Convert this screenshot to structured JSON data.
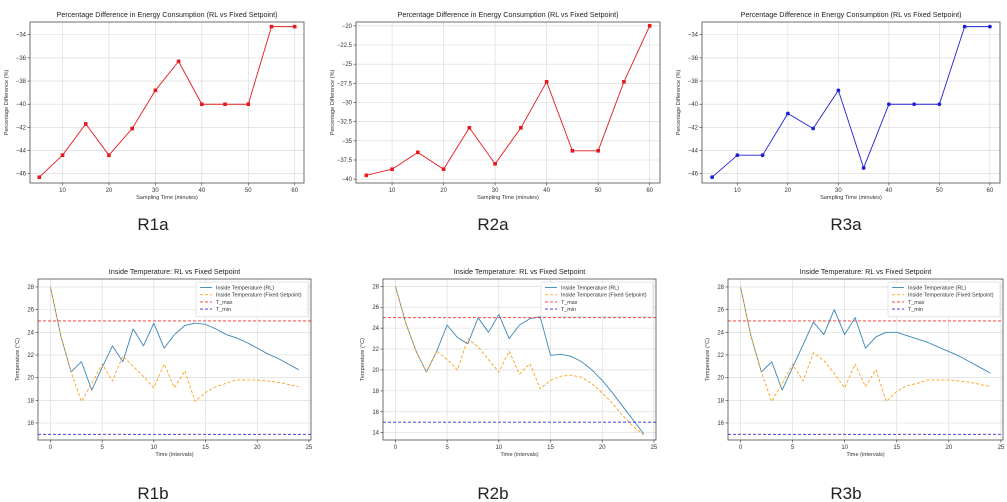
{
  "panel_labels": [
    "R1a",
    "R2a",
    "R3a",
    "R1b",
    "R2b",
    "R3b"
  ],
  "colors": {
    "red": "#e41a1c",
    "blue": "#1f1fd6",
    "rl": "#3a86b8",
    "fixed": "#ff9f1c",
    "tmax": "#ff2a2a",
    "tmin": "#2a2adf",
    "grid": "#d8d8d8",
    "axis": "#333333"
  },
  "chart_data": [
    {
      "type": "line",
      "label": "R1a",
      "title": "Percentage Difference in Energy Consumption (RL vs Fixed Setpoint)",
      "xlabel": "Sampling Time (minutes)",
      "ylabel": "Percentage Difference (%)",
      "xlim": [
        3,
        62
      ],
      "ylim": [
        -46.8,
        -32.9
      ],
      "xticks": [
        10,
        20,
        30,
        40,
        50,
        60
      ],
      "yticks": [
        -34,
        -36,
        -38,
        -40,
        -42,
        -44,
        -46
      ],
      "grid": true,
      "series": [
        {
          "color": "red",
          "marker": "square",
          "x": [
            5,
            10,
            15,
            20,
            25,
            30,
            35,
            40,
            45,
            50,
            55,
            60
          ],
          "y": [
            -46.3,
            -44.4,
            -41.7,
            -44.4,
            -42.1,
            -38.8,
            -36.3,
            -40.0,
            -40.0,
            -40.0,
            -33.3,
            -33.3
          ]
        }
      ]
    },
    {
      "type": "line",
      "label": "R2a",
      "title": "Percentage Difference in Energy Consumption (RL vs Fixed Setpoint)",
      "xlabel": "Sampling Time (minutes)",
      "ylabel": "Percentage Difference (%)",
      "xlim": [
        3,
        62
      ],
      "ylim": [
        -40.5,
        -19.5
      ],
      "xticks": [
        10,
        20,
        30,
        40,
        50,
        60
      ],
      "yticks": [
        -20.0,
        -22.5,
        -25.0,
        -27.5,
        -30.0,
        -32.5,
        -35.0,
        -37.5,
        -40.0
      ],
      "grid": true,
      "series": [
        {
          "color": "red",
          "marker": "square",
          "x": [
            5,
            10,
            15,
            20,
            25,
            30,
            35,
            40,
            45,
            50,
            55,
            60
          ],
          "y": [
            -39.5,
            -38.7,
            -36.5,
            -38.7,
            -33.3,
            -38.0,
            -33.3,
            -27.3,
            -36.3,
            -36.3,
            -27.3,
            -20.0
          ]
        }
      ]
    },
    {
      "type": "line",
      "label": "R3a",
      "title": "Percentage Difference in Energy Consumption (RL vs Fixed Setpoint)",
      "xlabel": "Sampling Time (minutes)",
      "ylabel": "Percentage Difference (%)",
      "xlim": [
        3,
        62
      ],
      "ylim": [
        -46.8,
        -32.9
      ],
      "xticks": [
        10,
        20,
        30,
        40,
        50,
        60
      ],
      "yticks": [
        -34,
        -36,
        -38,
        -40,
        -42,
        -44,
        -46
      ],
      "grid": true,
      "series": [
        {
          "color": "blue",
          "marker": "circle",
          "x": [
            5,
            10,
            15,
            20,
            25,
            30,
            35,
            40,
            45,
            50,
            55,
            60
          ],
          "y": [
            -46.3,
            -44.4,
            -44.4,
            -40.8,
            -42.1,
            -38.8,
            -45.5,
            -40.0,
            -40.0,
            -40.0,
            -33.3,
            -33.3
          ]
        }
      ]
    },
    {
      "type": "line",
      "label": "R1b",
      "title": "Inside Temperature: RL vs Fixed Setpoint",
      "xlabel": "Time (intervals)",
      "ylabel": "Temperature (°C)",
      "xlim": [
        -1.2,
        25.2
      ],
      "ylim": [
        14.5,
        28.7
      ],
      "xticks": [
        0,
        5,
        10,
        15,
        20,
        25
      ],
      "yticks": [
        16,
        18,
        20,
        22,
        24,
        26,
        28
      ],
      "grid": true,
      "legend": "top-right",
      "series": [
        {
          "name": "Inside Temperature (RL)",
          "color": "rl",
          "dash": "solid",
          "x": [
            0,
            1,
            2,
            3,
            4,
            5,
            6,
            7,
            8,
            9,
            10,
            11,
            12,
            13,
            14,
            15,
            16,
            17,
            18,
            19,
            20,
            21,
            22,
            23,
            24
          ],
          "y": [
            28.0,
            23.7,
            20.5,
            21.4,
            18.9,
            20.9,
            22.8,
            21.4,
            24.3,
            22.8,
            24.8,
            22.6,
            23.8,
            24.6,
            24.8,
            24.7,
            24.3,
            23.8,
            23.5,
            23.1,
            22.6,
            22.1,
            21.7,
            21.2,
            20.7
          ]
        },
        {
          "name": "Inside Temperature (Fixed Setpoint)",
          "color": "fixed",
          "dash": "dashed",
          "x": [
            0,
            1,
            2,
            3,
            4,
            5,
            6,
            7,
            8,
            9,
            10,
            11,
            12,
            13,
            14,
            15,
            16,
            17,
            18,
            19,
            20,
            21,
            22,
            23,
            24
          ],
          "y": [
            28.0,
            23.7,
            20.5,
            17.9,
            19.5,
            21.2,
            19.7,
            21.9,
            21.0,
            20.1,
            19.1,
            21.2,
            19.1,
            20.6,
            17.9,
            18.7,
            19.2,
            19.5,
            19.8,
            19.8,
            19.8,
            19.7,
            19.6,
            19.4,
            19.2
          ]
        },
        {
          "name": "T_max",
          "color": "tmax",
          "dash": "dashed",
          "x": [
            -1.2,
            25.2
          ],
          "y": [
            25,
            25
          ]
        },
        {
          "name": "T_min",
          "color": "tmin",
          "dash": "dashed",
          "x": [
            -1.2,
            25.2
          ],
          "y": [
            15,
            15
          ]
        }
      ]
    },
    {
      "type": "line",
      "label": "R2b",
      "title": "Inside Temperature: RL vs Fixed Setpoint",
      "xlabel": "Time (intervals)",
      "ylabel": "Temperature (°C)",
      "xlim": [
        -1.2,
        25.2
      ],
      "ylim": [
        13.3,
        28.7
      ],
      "xticks": [
        0,
        5,
        10,
        15,
        20,
        25
      ],
      "yticks": [
        14,
        16,
        18,
        20,
        22,
        24,
        26,
        28
      ],
      "grid": true,
      "legend": "top-right",
      "series": [
        {
          "name": "Inside Temperature (RL)",
          "color": "rl",
          "dash": "solid",
          "x": [
            0,
            1,
            2,
            3,
            4,
            5,
            6,
            7,
            8,
            9,
            10,
            11,
            12,
            13,
            14,
            15,
            16,
            17,
            18,
            19,
            20,
            21,
            22,
            23,
            24
          ],
          "y": [
            28.0,
            24.5,
            21.8,
            19.8,
            21.8,
            24.3,
            23.1,
            22.5,
            25.0,
            23.6,
            25.3,
            23.0,
            24.3,
            24.9,
            25.1,
            21.4,
            21.5,
            21.3,
            20.8,
            20.0,
            19.0,
            17.8,
            16.5,
            15.2,
            13.9
          ]
        },
        {
          "name": "Inside Temperature (Fixed Setpoint)",
          "color": "fixed",
          "dash": "dashed",
          "x": [
            0,
            1,
            2,
            3,
            4,
            5,
            6,
            7,
            8,
            9,
            10,
            11,
            12,
            13,
            14,
            15,
            16,
            17,
            18,
            19,
            20,
            21,
            22,
            23,
            24
          ],
          "y": [
            28.0,
            24.5,
            21.8,
            19.8,
            21.8,
            21.0,
            20.0,
            23.0,
            22.2,
            21.0,
            19.8,
            21.8,
            19.6,
            20.6,
            18.2,
            19.0,
            19.4,
            19.5,
            19.3,
            18.7,
            17.8,
            16.8,
            15.6,
            14.6,
            13.8
          ]
        },
        {
          "name": "T_max",
          "color": "tmax",
          "dash": "dashed",
          "x": [
            -1.2,
            25.2
          ],
          "y": [
            25,
            25
          ]
        },
        {
          "name": "T_min",
          "color": "tmin",
          "dash": "dashed",
          "x": [
            -1.2,
            25.2
          ],
          "y": [
            15,
            15
          ]
        }
      ]
    },
    {
      "type": "line",
      "label": "R3b",
      "title": "Inside Temperature: RL vs Fixed Setpoint",
      "xlabel": "Time (intervals)",
      "ylabel": "Temperature (°C)",
      "xlim": [
        -1.2,
        25.2
      ],
      "ylim": [
        14.5,
        28.7
      ],
      "xticks": [
        0,
        5,
        10,
        15,
        20,
        25
      ],
      "yticks": [
        16,
        18,
        20,
        22,
        24,
        26,
        28
      ],
      "grid": true,
      "legend": "top-right",
      "series": [
        {
          "name": "Inside Temperature (RL)",
          "color": "rl",
          "dash": "solid",
          "x": [
            0,
            1,
            2,
            3,
            4,
            5,
            6,
            7,
            8,
            9,
            10,
            11,
            12,
            13,
            14,
            15,
            16,
            17,
            18,
            19,
            20,
            21,
            22,
            23,
            24
          ],
          "y": [
            28.0,
            23.7,
            20.5,
            21.4,
            18.9,
            20.9,
            22.9,
            24.9,
            23.8,
            26.0,
            23.8,
            25.3,
            22.6,
            23.6,
            24.0,
            24.0,
            23.7,
            23.4,
            23.1,
            22.7,
            22.3,
            21.9,
            21.4,
            20.9,
            20.4
          ]
        },
        {
          "name": "Inside Temperature (Fixed Setpoint)",
          "color": "fixed",
          "dash": "dashed",
          "x": [
            0,
            1,
            2,
            3,
            4,
            5,
            6,
            7,
            8,
            9,
            10,
            11,
            12,
            13,
            14,
            15,
            16,
            17,
            18,
            19,
            20,
            21,
            22,
            23,
            24
          ],
          "y": [
            28.0,
            23.7,
            20.5,
            17.9,
            19.5,
            21.2,
            19.7,
            22.2,
            21.5,
            20.4,
            19.1,
            21.2,
            19.2,
            20.7,
            17.9,
            18.8,
            19.3,
            19.5,
            19.8,
            19.8,
            19.8,
            19.7,
            19.6,
            19.4,
            19.2
          ]
        },
        {
          "name": "T_max",
          "color": "tmax",
          "dash": "dashed",
          "x": [
            -1.2,
            25.2
          ],
          "y": [
            25,
            25
          ]
        },
        {
          "name": "T_min",
          "color": "tmin",
          "dash": "dashed",
          "x": [
            -1.2,
            25.2
          ],
          "y": [
            15,
            15
          ]
        }
      ]
    }
  ]
}
